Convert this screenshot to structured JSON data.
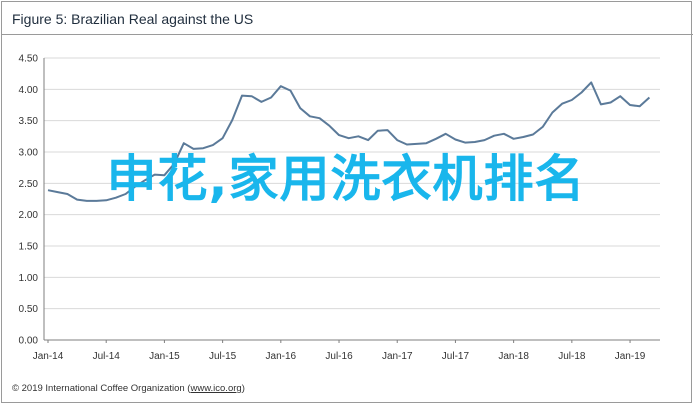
{
  "figure": {
    "title": "Figure 5: Brazilian Real against the US",
    "copyright_prefix": "© 2019 International Coffee Organization (",
    "copyright_link": "www.ico.org",
    "copyright_suffix": ")"
  },
  "overlay_text": "申花,家用洗衣机排名",
  "colors": {
    "line": "#5b7a99",
    "overlay": "#19b6ec",
    "grid": "#d9d9d9",
    "axis": "#7f7f7f"
  },
  "chart_data": {
    "type": "line",
    "title": "Figure 5: Brazilian Real against the US",
    "xlabel": "",
    "ylabel": "",
    "ylim": [
      0,
      4.5
    ],
    "yticks": [
      "0.00",
      "0.50",
      "1.00",
      "1.50",
      "2.00",
      "2.50",
      "3.00",
      "3.50",
      "4.00",
      "4.50"
    ],
    "xticks": [
      "Jan-14",
      "Jul-14",
      "Jan-15",
      "Jul-15",
      "Jan-16",
      "Jul-16",
      "Jan-17",
      "Jul-17",
      "Jan-18",
      "Jul-18",
      "Jan-19"
    ],
    "grid": true,
    "series": [
      {
        "x": [
          "Jan-14",
          "Feb-14",
          "Mar-14",
          "Apr-14",
          "May-14",
          "Jun-14",
          "Jul-14",
          "Aug-14",
          "Sep-14",
          "Oct-14",
          "Nov-14",
          "Dec-14",
          "Jan-15",
          "Feb-15",
          "Mar-15",
          "Apr-15",
          "May-15",
          "Jun-15",
          "Jul-15",
          "Aug-15",
          "Sep-15",
          "Oct-15",
          "Nov-15",
          "Dec-15",
          "Jan-16",
          "Feb-16",
          "Mar-16",
          "Apr-16",
          "May-16",
          "Jun-16",
          "Jul-16",
          "Aug-16",
          "Sep-16",
          "Oct-16",
          "Nov-16",
          "Dec-16",
          "Jan-17",
          "Feb-17",
          "Mar-17",
          "Apr-17",
          "May-17",
          "Jun-17",
          "Jul-17",
          "Aug-17",
          "Sep-17",
          "Oct-17",
          "Nov-17",
          "Dec-17",
          "Jan-18",
          "Feb-18",
          "Mar-18",
          "Apr-18",
          "May-18",
          "Jun-18",
          "Jul-18",
          "Aug-18",
          "Sep-18",
          "Oct-18",
          "Nov-18",
          "Dec-18",
          "Jan-19",
          "Feb-19",
          "Mar-19"
        ],
        "values": [
          2.39,
          2.36,
          2.33,
          2.24,
          2.22,
          2.22,
          2.23,
          2.27,
          2.33,
          2.45,
          2.55,
          2.64,
          2.63,
          2.81,
          3.14,
          3.05,
          3.06,
          3.11,
          3.22,
          3.51,
          3.9,
          3.89,
          3.8,
          3.87,
          4.05,
          3.98,
          3.7,
          3.57,
          3.54,
          3.42,
          3.27,
          3.22,
          3.25,
          3.19,
          3.34,
          3.35,
          3.19,
          3.12,
          3.13,
          3.14,
          3.21,
          3.29,
          3.2,
          3.15,
          3.16,
          3.19,
          3.26,
          3.29,
          3.21,
          3.24,
          3.28,
          3.4,
          3.63,
          3.77,
          3.83,
          3.95,
          4.11,
          3.76,
          3.79,
          3.89,
          3.75,
          3.73,
          3.87
        ]
      }
    ]
  }
}
